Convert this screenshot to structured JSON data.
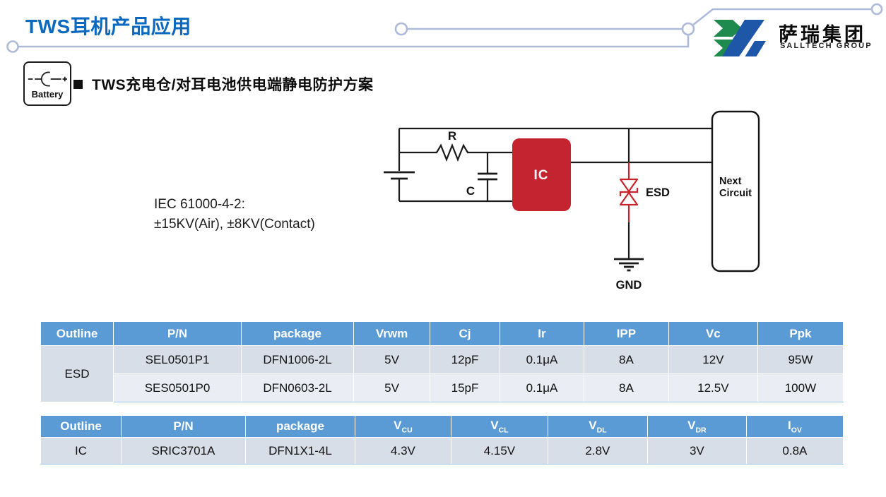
{
  "slide": {
    "title": "TWS耳机产品应用",
    "section_heading": "TWS充电仓/对耳电池供电端静电防护方案",
    "iec_note": {
      "line1": "IEC 61000-4-2:",
      "line2": "±15KV(Air), ±8KV(Contact)"
    }
  },
  "logo": {
    "company_cn": "萨瑞集团",
    "company_en": "SALLTECH GROUP",
    "mark_green": "#1F8A4D",
    "mark_blue": "#1E56A8"
  },
  "battery_badge": {
    "label": "Battery"
  },
  "circuit": {
    "resistor_label": "R",
    "capacitor_label": "C",
    "ic_label": "IC",
    "esd_label": "ESD",
    "gnd_label": "GND",
    "next_circuit_line1": "Next",
    "next_circuit_line2": "Circuit",
    "ic_fill": "#C3242F",
    "esd_red": "#C9242C"
  },
  "colors": {
    "title_blue": "#0A68BE",
    "trace": "#AEBAD8",
    "table_header_bg": "#5B9BD5",
    "table_band_a": "#D8DEE8",
    "table_band_b": "#EAEDF3",
    "table_bottom_border": "#9DC3E6"
  },
  "tables": {
    "esd": {
      "headers": [
        {
          "t": "Outline"
        },
        {
          "t": "P/N"
        },
        {
          "t": "package"
        },
        {
          "t": "Vrwm"
        },
        {
          "t": "Cj"
        },
        {
          "t": "Ir"
        },
        {
          "t": "IPP"
        },
        {
          "t": "Vc"
        },
        {
          "t": "Ppk"
        }
      ],
      "merged_outline": "ESD",
      "rows": [
        [
          "SEL0501P1",
          "DFN1006-2L",
          "5V",
          "12pF",
          "0.1μA",
          "8A",
          "12V",
          "95W"
        ],
        [
          "SES0501P0",
          "DFN0603-2L",
          "5V",
          "15pF",
          "0.1μA",
          "8A",
          "12.5V",
          "100W"
        ]
      ]
    },
    "ic": {
      "headers": [
        {
          "t": "Outline"
        },
        {
          "t": "P/N"
        },
        {
          "t": "package"
        },
        {
          "t": "V",
          "sub": "CU"
        },
        {
          "t": "V",
          "sub": "CL"
        },
        {
          "t": "V",
          "sub": "DL"
        },
        {
          "t": "V",
          "sub": "DR"
        },
        {
          "t": "I",
          "sub": "OV"
        }
      ],
      "rows": [
        [
          "IC",
          "SRIC3701A",
          "DFN1X1-4L",
          "4.3V",
          "4.15V",
          "2.8V",
          "3V",
          "0.8A"
        ]
      ]
    }
  }
}
